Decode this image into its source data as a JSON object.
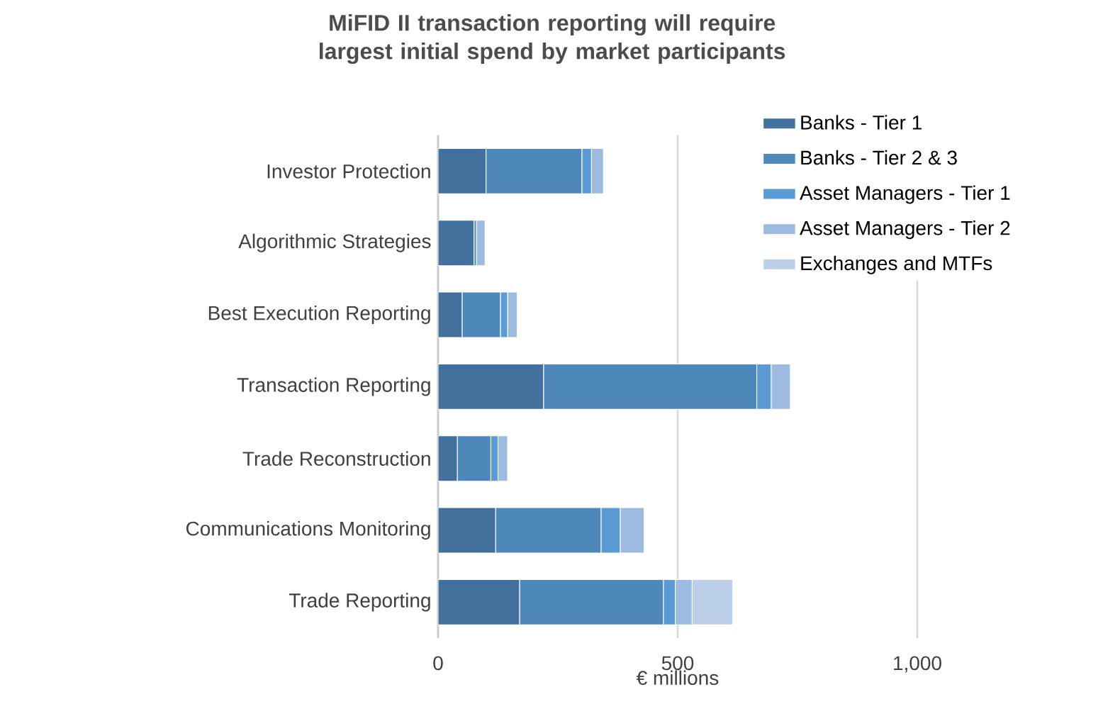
{
  "chart_data": {
    "type": "bar",
    "orientation": "horizontal",
    "stacked": true,
    "title": "MiFID II transaction reporting will require largest initial spend by market participants",
    "xlabel": "€ millions",
    "categories": [
      "Investor Protection",
      "Algorithmic Strategies",
      "Best Execution Reporting",
      "Transaction Reporting",
      "Trade Reconstruction",
      "Communications Monitoring",
      "Trade Reporting"
    ],
    "series": [
      {
        "name": "Banks - Tier 1",
        "color": "#41719c",
        "values": [
          100,
          75,
          50,
          220,
          40,
          120,
          170
        ]
      },
      {
        "name": "Banks - Tier 2 & 3",
        "color": "#4e88bb",
        "values": [
          200,
          5,
          80,
          445,
          70,
          220,
          300
        ]
      },
      {
        "name": "Asset Managers - Tier 1",
        "color": "#5b9bd5",
        "values": [
          20,
          null,
          15,
          30,
          15,
          40,
          25
        ]
      },
      {
        "name": "Asset Managers - Tier 2",
        "color": "#9dbbe0",
        "values": [
          25,
          18,
          20,
          40,
          20,
          50,
          35
        ]
      },
      {
        "name": "Exchanges and MTFs",
        "color": "#bdd0e9",
        "values": [
          0,
          0,
          0,
          0,
          0,
          0,
          85
        ]
      }
    ],
    "xlim": [
      0,
      1000
    ],
    "xticks": [
      0,
      500,
      {
        "value": 1000,
        "label": "1,000"
      }
    ],
    "grid": "x",
    "legend": "right"
  }
}
